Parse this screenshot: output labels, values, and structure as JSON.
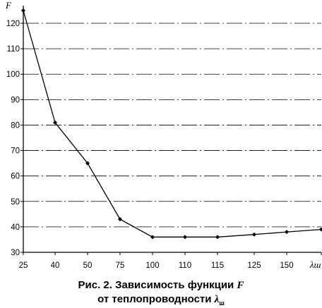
{
  "chart_data": {
    "type": "line",
    "ylabel": "F",
    "xlabel": "λш",
    "categories": [
      "25",
      "40",
      "50",
      "75",
      "100",
      "110",
      "115",
      "125",
      "150"
    ],
    "values": [
      125,
      81,
      65,
      43,
      36,
      36,
      36,
      37,
      38
    ],
    "end_value": 39,
    "ylim": [
      30,
      125
    ],
    "yticks": [
      "30",
      "40",
      "50",
      "60",
      "70",
      "80",
      "90",
      "100",
      "110",
      "120"
    ],
    "grid": true,
    "line_color": "#000000",
    "marker": "diamond",
    "caption": "Рис. 2. Зависимость функции F от теплопроводности λш"
  },
  "caption": {
    "line1": "Рис. 2. Зависимость функции",
    "line1_symbol": "F",
    "line2": "от теплопроводности",
    "line2_symbol": "λ",
    "line2_sub": "ш"
  }
}
